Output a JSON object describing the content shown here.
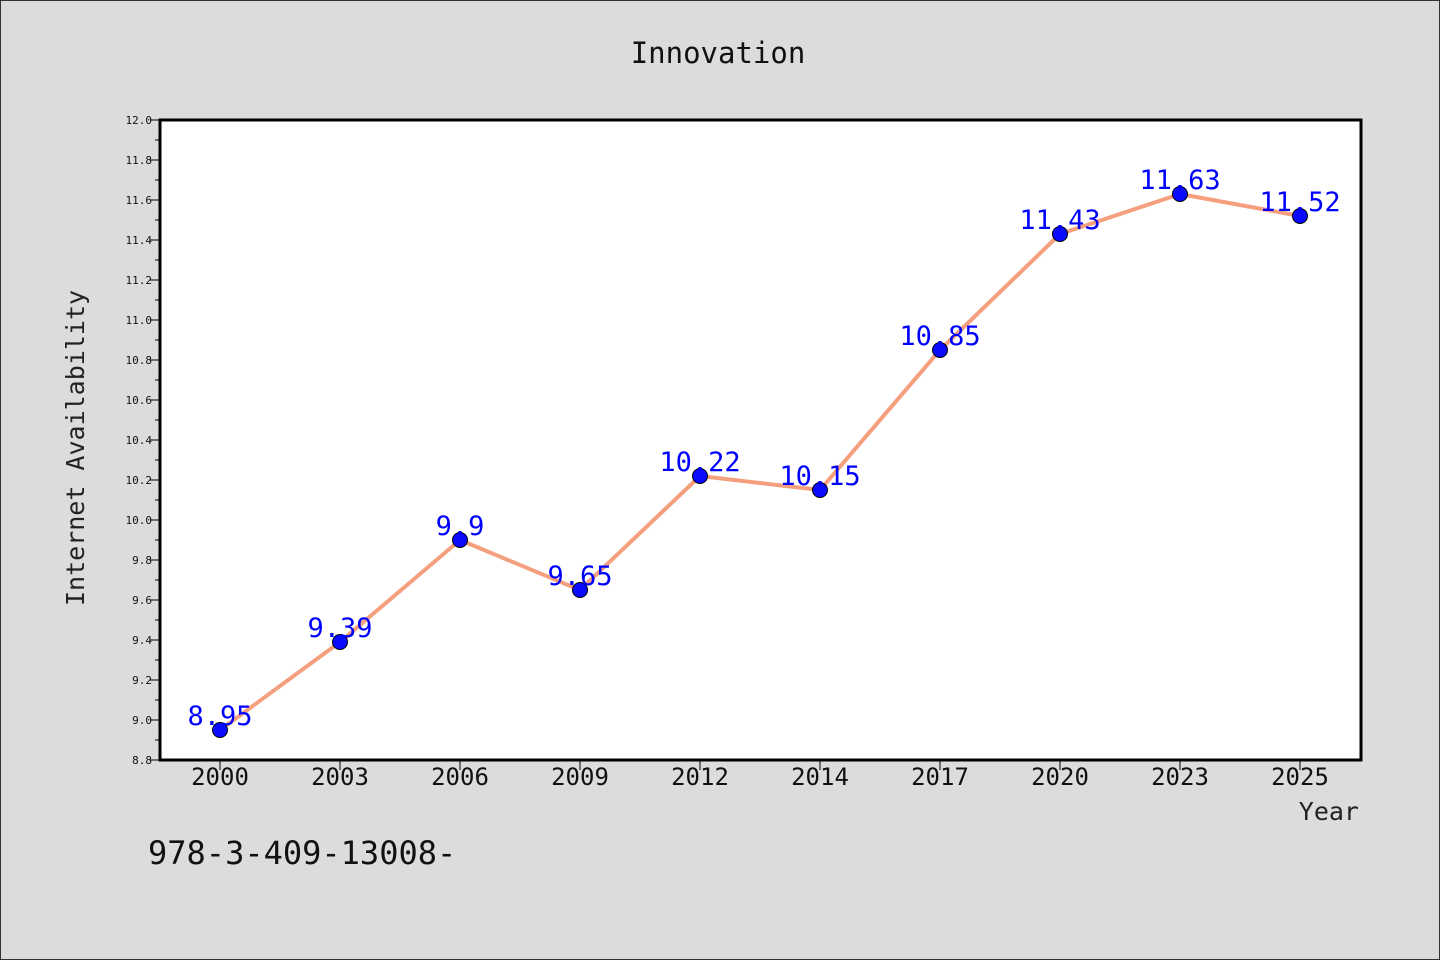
{
  "chart_data": {
    "type": "line",
    "title": "Innovation",
    "xlabel": "Year",
    "ylabel": "Internet Availability",
    "categories": [
      "2000",
      "2003",
      "2006",
      "2009",
      "2012",
      "2014",
      "2017",
      "2020",
      "2023",
      "2025"
    ],
    "series": [
      {
        "values": [
          8.95,
          9.39,
          9.9,
          9.65,
          10.22,
          10.15,
          10.85,
          11.43,
          11.63,
          11.52
        ],
        "labels": [
          "8.95",
          "9.39",
          "9.9",
          "9.65",
          "10.22",
          "10.15",
          "10.85",
          "11.43",
          "11.63",
          "11.52"
        ],
        "line_color": "#f4a07f",
        "marker_color": "#0a0aff",
        "label_color": "#0000ff"
      }
    ],
    "ylim": [
      8.8,
      12.0
    ],
    "yticks": [
      "8.8",
      "9.0",
      "9.2",
      "9.4",
      "9.6",
      "9.8",
      "10.0",
      "10.2",
      "10.4",
      "10.6",
      "10.8",
      "11.0",
      "11.2",
      "11.4",
      "11.6",
      "11.8",
      "12.0"
    ],
    "grid": false,
    "legend": "none",
    "plot_background": "#ffffff",
    "figure_background": "#dcdcdc"
  },
  "footer_text": "978-3-409-13008-"
}
